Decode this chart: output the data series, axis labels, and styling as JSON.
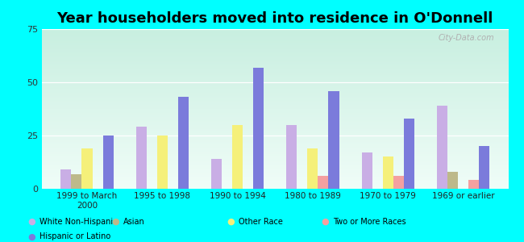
{
  "title": "Year householders moved into residence in O'Donnell",
  "categories": [
    "1999 to March\n2000",
    "1995 to 1998",
    "1990 to 1994",
    "1980 to 1989",
    "1970 to 1979",
    "1969 or earlier"
  ],
  "series": {
    "White Non-Hispanic": [
      9,
      29,
      14,
      30,
      17,
      39
    ],
    "Asian": [
      7,
      0,
      0,
      0,
      0,
      8
    ],
    "Other Race": [
      19,
      25,
      30,
      19,
      15,
      0
    ],
    "Two or More Races": [
      0,
      0,
      0,
      6,
      6,
      4
    ],
    "Hispanic or Latino": [
      25,
      43,
      57,
      46,
      33,
      20
    ]
  },
  "colors": {
    "White Non-Hispanic": "#c9aee5",
    "Asian": "#bdb98a",
    "Other Race": "#f5f07a",
    "Two or More Races": "#f4a0a0",
    "Hispanic or Latino": "#7b7bdb"
  },
  "legend_order": [
    "White Non-Hispanic",
    "Asian",
    "Other Race",
    "Two or More Races",
    "Hispanic or Latino"
  ],
  "legend_row1": [
    "White Non-Hispanic",
    "Asian",
    "Other Race",
    "Two or More Races"
  ],
  "legend_row2": [
    "Hispanic or Latino"
  ],
  "ylim": [
    0,
    75
  ],
  "yticks": [
    0,
    25,
    50,
    75
  ],
  "background_color": "#00ffff",
  "plot_bg_top": "#c8efe0",
  "plot_bg_bottom": "#f0fdf8",
  "watermark": "City-Data.com",
  "bar_width": 0.14,
  "title_fontsize": 13
}
